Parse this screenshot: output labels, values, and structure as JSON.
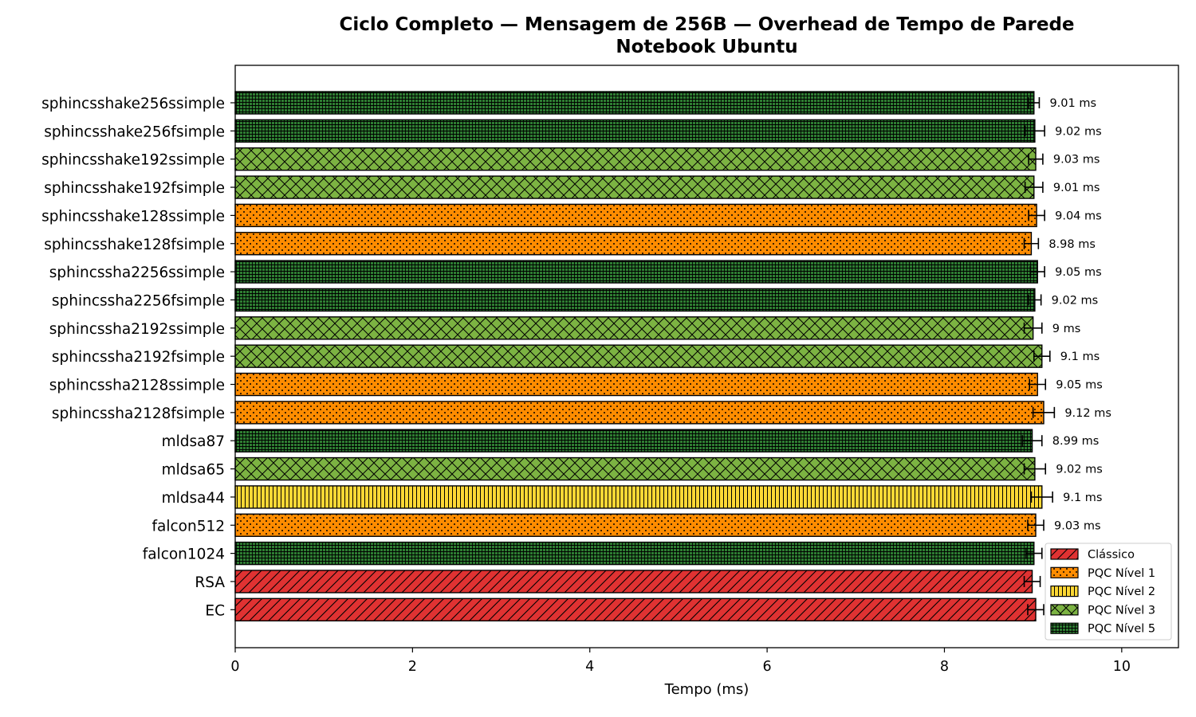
{
  "chart_data": {
    "type": "bar",
    "orientation": "horizontal",
    "title": "Ciclo Completo — Mensagem de 256B — Overhead de Tempo de Parede",
    "subtitle": "Notebook Ubuntu",
    "xlabel": "Tempo (ms)",
    "ylabel": "",
    "xlim": [
      0,
      10.64
    ],
    "xticks": [
      0,
      2,
      4,
      6,
      8,
      10
    ],
    "grid": false,
    "legend_position": "bottom-right",
    "value_label_suffix": " ms",
    "legend": [
      {
        "name": "Clássico",
        "group": "classic",
        "color": "#e03232",
        "hatch": "diagonal"
      },
      {
        "name": "PQC Nível 1",
        "group": "l1",
        "color": "#ff8c00",
        "hatch": "dots"
      },
      {
        "name": "PQC Nível 2",
        "group": "l2",
        "color": "#fdd835",
        "hatch": "vertical"
      },
      {
        "name": "PQC Nível 3",
        "group": "l3",
        "color": "#7cb342",
        "hatch": "crosshatch"
      },
      {
        "name": "PQC Nível 5",
        "group": "l5",
        "color": "#2e7d32",
        "hatch": "grid"
      }
    ],
    "bars": [
      {
        "label": "sphincsshake256ssimple",
        "value": 9.01,
        "error": 0.06,
        "group": "l5",
        "value_label": "9.01 ms"
      },
      {
        "label": "sphincsshake256fsimple",
        "value": 9.02,
        "error": 0.11,
        "group": "l5",
        "value_label": "9.02 ms"
      },
      {
        "label": "sphincsshake192ssimple",
        "value": 9.03,
        "error": 0.08,
        "group": "l3",
        "value_label": "9.03 ms"
      },
      {
        "label": "sphincsshake192fsimple",
        "value": 9.01,
        "error": 0.1,
        "group": "l3",
        "value_label": "9.01 ms"
      },
      {
        "label": "sphincsshake128ssimple",
        "value": 9.04,
        "error": 0.09,
        "group": "l1",
        "value_label": "9.04 ms"
      },
      {
        "label": "sphincsshake128fsimple",
        "value": 8.98,
        "error": 0.08,
        "group": "l1",
        "value_label": "8.98 ms"
      },
      {
        "label": "sphincssha2256ssimple",
        "value": 9.05,
        "error": 0.08,
        "group": "l5",
        "value_label": "9.05 ms"
      },
      {
        "label": "sphincssha2256fsimple",
        "value": 9.02,
        "error": 0.07,
        "group": "l5",
        "value_label": "9.02 ms"
      },
      {
        "label": "sphincssha2192ssimple",
        "value": 9.0,
        "error": 0.1,
        "group": "l3",
        "value_label": "9 ms"
      },
      {
        "label": "sphincssha2192fsimple",
        "value": 9.1,
        "error": 0.09,
        "group": "l3",
        "value_label": "9.1 ms"
      },
      {
        "label": "sphincssha2128ssimple",
        "value": 9.05,
        "error": 0.09,
        "group": "l1",
        "value_label": "9.05 ms"
      },
      {
        "label": "sphincssha2128fsimple",
        "value": 9.12,
        "error": 0.12,
        "group": "l1",
        "value_label": "9.12 ms"
      },
      {
        "label": "mldsa87",
        "value": 8.99,
        "error": 0.11,
        "group": "l5",
        "value_label": "8.99 ms"
      },
      {
        "label": "mldsa65",
        "value": 9.02,
        "error": 0.12,
        "group": "l3",
        "value_label": "9.02 ms"
      },
      {
        "label": "mldsa44",
        "value": 9.1,
        "error": 0.12,
        "group": "l2",
        "value_label": "9.1 ms"
      },
      {
        "label": "falcon512",
        "value": 9.03,
        "error": 0.09,
        "group": "l1",
        "value_label": "9.03 ms"
      },
      {
        "label": "falcon1024",
        "value": 9.01,
        "error": 0.09,
        "group": "l5",
        "value_label": ""
      },
      {
        "label": "RSA",
        "value": 8.99,
        "error": 0.09,
        "group": "classic",
        "value_label": ""
      },
      {
        "label": "EC",
        "value": 9.03,
        "error": 0.09,
        "group": "classic",
        "value_label": ""
      }
    ]
  }
}
